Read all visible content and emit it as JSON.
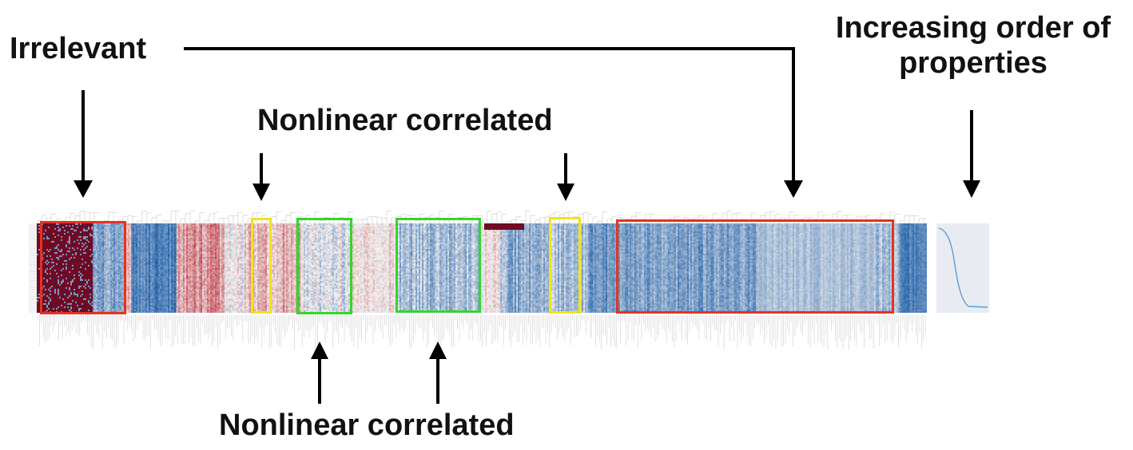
{
  "labels": {
    "irrelevant": "Irrelevant",
    "nonlinear_top": "Nonlinear correlated",
    "nonlinear_bottom": "Nonlinear correlated",
    "increasing_line1": "Increasing order of",
    "increasing_line2": "properties"
  },
  "colors": {
    "red_box": "#e5321f",
    "yellow_box": "#f2e31c",
    "green_box": "#33d62b",
    "heat_low": "#2166ac",
    "heat_mid": "#f7f7f7",
    "heat_high": "#b2182b",
    "curve": "#5b9bd5",
    "curve_panel_bg": "#e9ebf3"
  },
  "regions": [
    {
      "name": "irrelevant-group-left",
      "style": "red"
    },
    {
      "name": "nonlinear-yellow-1",
      "style": "yellow"
    },
    {
      "name": "nonlinear-green-1",
      "style": "green"
    },
    {
      "name": "nonlinear-green-2",
      "style": "green"
    },
    {
      "name": "nonlinear-yellow-2",
      "style": "yellow"
    },
    {
      "name": "irrelevant-group-right",
      "style": "red"
    }
  ]
}
